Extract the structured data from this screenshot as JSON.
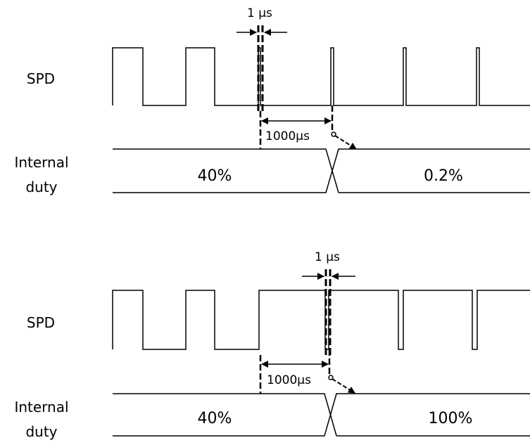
{
  "panels": [
    {
      "signal_label": "SPD",
      "internal_label_line1": "Internal",
      "internal_label_line2": "duty",
      "pulse_width_label": "1 µs",
      "interval_label": "1000µs",
      "duty_before": "40%",
      "duty_after": "0.2%"
    },
    {
      "signal_label": "SPD",
      "internal_label_line1": "Internal",
      "internal_label_line2": "duty",
      "pulse_width_label": "1 µs",
      "interval_label": "1000µs",
      "duty_before": "40%",
      "duty_after": "100%"
    }
  ]
}
